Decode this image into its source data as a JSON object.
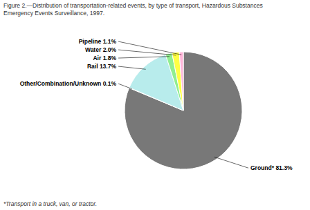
{
  "chart_data": {
    "type": "pie",
    "title": [
      "Figure 2.—Distribution of transportation-related events, by type of transport, Hazardous Substances",
      "Emergency Events Surveillance, 1997."
    ],
    "annotations": [
      "*Transport in a truck, van, or tractor."
    ],
    "categories": [
      "Ground*",
      "Other/Combination/Unknown",
      "Rail",
      "Air",
      "Water",
      "Pipeline"
    ],
    "values": [
      81.3,
      0.1,
      13.7,
      1.8,
      2.0,
      1.1
    ],
    "value_labels": [
      "81.3%",
      "0.1%",
      "13.7%",
      "1.8%",
      "2.0%",
      "1.1%"
    ],
    "data_labels": true,
    "colors": [
      "#787878",
      "#b8ecec",
      "#b8ecec",
      "#90ee90",
      "#ffff44",
      "#ffb6d9"
    ]
  }
}
